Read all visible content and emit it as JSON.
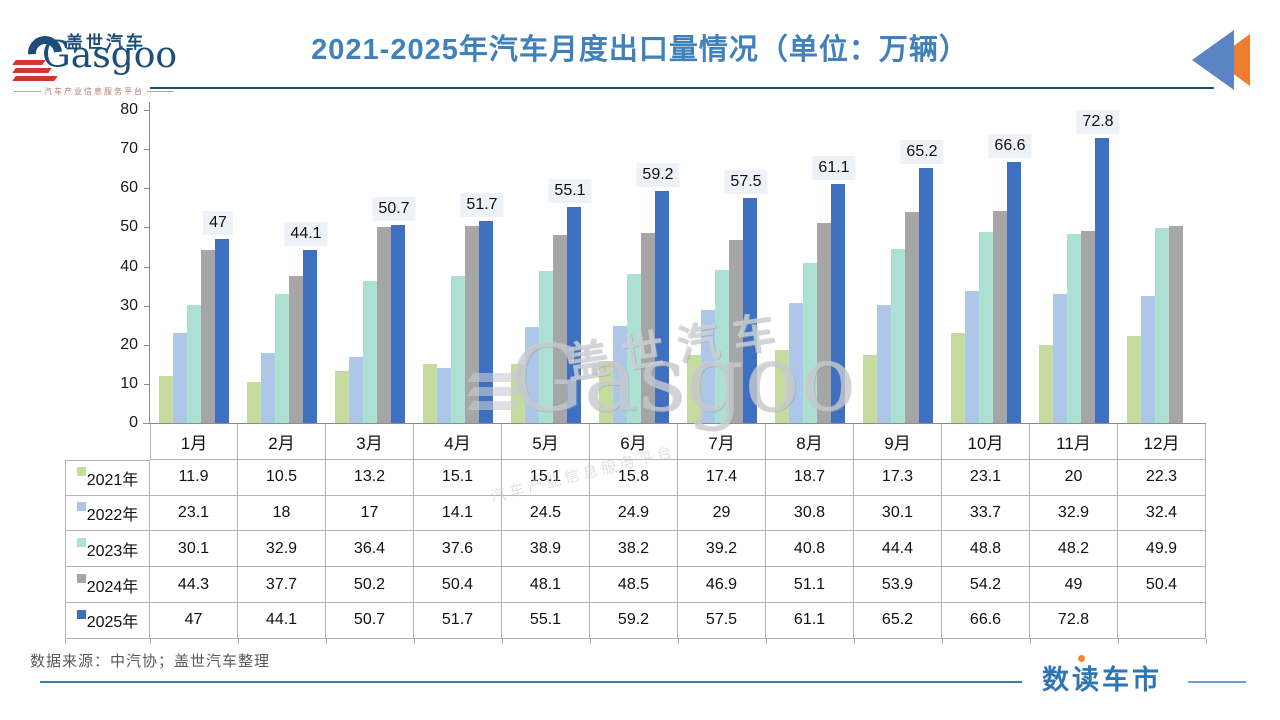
{
  "header": {
    "logo_cn": "盖世汽车",
    "logo_en": "Gasgoo",
    "logo_tagline": "汽车产业信息服务平台",
    "title": "2021-2025年汽车月度出口量情况（单位：万辆）"
  },
  "watermark": {
    "cn": "盖世汽车",
    "en": "Gasgoo",
    "tagline": "汽车产业信息服务平台"
  },
  "footer": {
    "source": "数据来源：中汽协；盖世汽车整理",
    "brand": "数读车市"
  },
  "colors": {
    "title_blue": "#4181bb",
    "navy": "#1d4e79",
    "logo_red": "#d1372c",
    "axis_gray": "#8c8c8c",
    "table_border": "#b3b3b3",
    "label_box_bg": "#edf1f8",
    "teal_rule": "#31849b",
    "brand_blue": "#2e75b6",
    "brand_orange": "#ef8632",
    "icon_blue": "#5b84c4",
    "icon_orange": "#ed7d31"
  },
  "chart_data": {
    "type": "bar",
    "title": "2021-2025年汽车月度出口量情况（单位：万辆）",
    "unit": "万辆",
    "xlabel": "",
    "ylabel": "",
    "ylim": [
      0,
      80
    ],
    "yticks": [
      0,
      10,
      20,
      30,
      40,
      50,
      60,
      70,
      80
    ],
    "grid": false,
    "legend_position": "table-left",
    "categories": [
      "1月",
      "2月",
      "3月",
      "4月",
      "5月",
      "6月",
      "7月",
      "8月",
      "9月",
      "10月",
      "11月",
      "12月"
    ],
    "series": [
      {
        "name": "2021年",
        "color": "#c5dc9e",
        "values": [
          11.9,
          10.5,
          13.2,
          15.1,
          15.1,
          15.8,
          17.4,
          18.7,
          17.3,
          23.1,
          20,
          22.3
        ]
      },
      {
        "name": "2022年",
        "color": "#aec7e8",
        "values": [
          23.1,
          18,
          17,
          14.1,
          24.5,
          24.9,
          29,
          30.8,
          30.1,
          33.7,
          32.9,
          32.4
        ]
      },
      {
        "name": "2023年",
        "color": "#abe0d3",
        "values": [
          30.1,
          32.9,
          36.4,
          37.6,
          38.9,
          38.2,
          39.2,
          40.8,
          44.4,
          48.8,
          48.2,
          49.9
        ]
      },
      {
        "name": "2024年",
        "color": "#a6a6a6",
        "values": [
          44.3,
          37.7,
          50.2,
          50.4,
          48.1,
          48.5,
          46.9,
          51.1,
          53.9,
          54.2,
          49,
          50.4
        ]
      },
      {
        "name": "2025年",
        "color": "#3e6fc1",
        "labeled": true,
        "values": [
          47,
          44.1,
          50.7,
          51.7,
          55.1,
          59.2,
          57.5,
          61.1,
          65.2,
          66.6,
          72.8,
          null
        ]
      }
    ]
  }
}
